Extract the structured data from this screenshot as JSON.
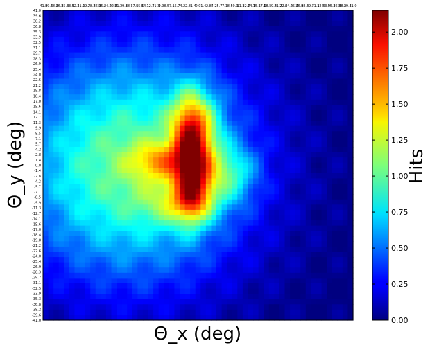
{
  "chart_data": {
    "type": "heatmap",
    "title": "",
    "xlabel": "Θ_x (deg)",
    "ylabel": "Θ_y (deg)",
    "colorbar_label": "Hits",
    "colormap": "jet",
    "colorbar_range": [
      0,
      2.15
    ],
    "colorbar_ticks": [
      "0.00",
      "0.25",
      "0.50",
      "0.75",
      "1.00",
      "1.25",
      "1.50",
      "1.75",
      "2.00"
    ],
    "x_range": [
      -41.0,
      41.0
    ],
    "y_range": [
      -41.0,
      41.0
    ],
    "x_tick_labels": [
      "-41.0",
      "-39.6",
      "-38.2",
      "-36.8",
      "-35.3",
      "-33.9",
      "-32.5",
      "-31.1",
      "-29.7",
      "-28.3",
      "-26.9",
      "-25.4",
      "-24.0",
      "-22.6",
      "-21.2",
      "-19.8",
      "-18.4",
      "-17.0",
      "-15.6",
      "-14.1",
      "-12.7",
      "-11.3",
      "-9.9",
      "-8.5",
      "-7.1",
      "-5.7",
      "-4.2",
      "-2.8",
      "-1.4",
      "0.0",
      "1.4",
      "2.8",
      "4.2",
      "5.7",
      "7.1",
      "8.5",
      "9.9",
      "11.3",
      "12.7",
      "14.1",
      "15.6",
      "17.0",
      "18.4",
      "19.8",
      "21.2",
      "22.6",
      "24.0",
      "25.4",
      "26.9",
      "28.3",
      "29.7",
      "31.1",
      "32.5",
      "33.9",
      "35.3",
      "36.8",
      "38.2",
      "39.6",
      "41.0"
    ],
    "y_tick_labels": [
      "41.0",
      "39.6",
      "38.2",
      "36.8",
      "35.3",
      "33.9",
      "32.5",
      "31.1",
      "29.7",
      "28.3",
      "26.9",
      "25.4",
      "24.0",
      "22.6",
      "21.2",
      "19.8",
      "18.4",
      "17.0",
      "15.6",
      "14.1",
      "12.7",
      "11.3",
      "9.9",
      "8.5",
      "7.1",
      "5.7",
      "4.2",
      "2.8",
      "1.4",
      "0.0",
      "-1.4",
      "-2.8",
      "-4.2",
      "-5.7",
      "-7.1",
      "-8.5",
      "-9.9",
      "-11.3",
      "-12.7",
      "-14.1",
      "-15.6",
      "-17.0",
      "-18.4",
      "-19.8",
      "-21.2",
      "-22.6",
      "-24.0",
      "-25.4",
      "-26.9",
      "-28.3",
      "-29.7",
      "-31.1",
      "-32.5",
      "-33.9",
      "-35.3",
      "-36.8",
      "-38.2",
      "-39.6",
      "-41.0"
    ],
    "grid_size": 59,
    "blobs": [
      {
        "x": -18,
        "y": 0,
        "sx": 22,
        "sy": 22,
        "amp": 1.05
      },
      {
        "x": -1,
        "y": 10,
        "sx": 4.5,
        "sy": 7,
        "amp": 0.85
      },
      {
        "x": -1,
        "y": -4,
        "sx": 3.5,
        "sy": 7,
        "amp": 0.75
      },
      {
        "x": -10,
        "y": 1,
        "sx": 5.5,
        "sy": 3.5,
        "amp": 0.55
      },
      {
        "x": 8,
        "y": -2,
        "sx": 5,
        "sy": 5,
        "amp": 0.5
      },
      {
        "x": -4,
        "y": -10,
        "sx": 7,
        "sy": 4,
        "amp": 0.45
      },
      {
        "x": -2,
        "y": 2,
        "sx": 2.8,
        "sy": 10,
        "amp": 0.55
      }
    ]
  }
}
